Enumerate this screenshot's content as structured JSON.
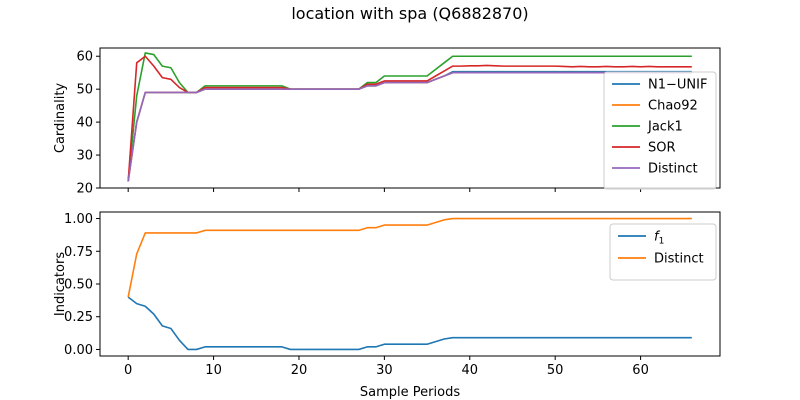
{
  "figure": {
    "title": "location with spa (Q6882870)"
  },
  "chart_data": [
    {
      "type": "line",
      "ylabel": "Cardinality",
      "xlabel": "",
      "xlim": [
        -3.3,
        69.3
      ],
      "ylim": [
        20,
        62.5
      ],
      "xticks": [
        0,
        10,
        20,
        30,
        40,
        50,
        60
      ],
      "yticks": [
        20,
        30,
        40,
        50,
        60
      ],
      "xtick_labels_visible": false,
      "grid": false,
      "legend_position": "right",
      "x": [
        0,
        1,
        2,
        3,
        4,
        5,
        6,
        7,
        8,
        9,
        10,
        11,
        12,
        13,
        14,
        15,
        16,
        17,
        18,
        19,
        20,
        21,
        22,
        23,
        24,
        25,
        26,
        27,
        28,
        29,
        30,
        31,
        32,
        33,
        34,
        35,
        36,
        37,
        38,
        39,
        40,
        41,
        42,
        43,
        44,
        45,
        46,
        47,
        48,
        49,
        50,
        51,
        52,
        53,
        54,
        55,
        56,
        57,
        58,
        59,
        60,
        61,
        62,
        63,
        64,
        65,
        66
      ],
      "series": [
        {
          "name": "N1−UNIF",
          "color": "#1f77b4",
          "values": [
            22,
            40,
            49,
            49,
            49,
            49,
            49,
            49,
            49,
            50,
            50,
            50,
            50,
            50,
            50,
            50,
            50,
            50,
            50,
            50,
            50,
            50,
            50,
            50,
            50,
            50,
            50,
            50,
            51,
            51,
            52,
            52,
            52,
            52,
            52,
            52,
            53,
            54,
            55.3,
            55.3,
            55.3,
            55.3,
            55.3,
            55.3,
            55.3,
            55.3,
            55.3,
            55.3,
            55.3,
            55.3,
            55.3,
            55.3,
            55.3,
            55.3,
            55.3,
            55.3,
            55.3,
            55.3,
            55.3,
            55.3,
            55.3,
            55.3,
            55.3,
            55.3,
            55.3,
            55.3,
            55.3
          ]
        },
        {
          "name": "Chao92",
          "color": "#ff7f0e",
          "values": [
            22,
            40,
            49,
            49,
            49,
            49,
            49,
            49,
            49,
            50,
            50,
            50,
            50,
            50,
            50,
            50,
            50,
            50,
            50,
            50,
            50,
            50,
            50,
            50,
            50,
            50,
            50,
            50,
            51,
            51,
            52,
            52,
            52,
            52,
            52,
            52,
            53,
            54,
            55,
            55,
            55,
            55,
            55,
            55,
            55,
            55,
            55,
            55,
            55,
            55,
            55,
            55,
            55,
            55,
            55,
            55,
            55,
            55,
            55,
            55,
            55,
            55,
            55,
            55,
            55,
            55,
            55
          ]
        },
        {
          "name": "Jack1",
          "color": "#2ca02c",
          "values": [
            22,
            48,
            61,
            60.5,
            57,
            56.5,
            52,
            49,
            49,
            51,
            51,
            51,
            51,
            51,
            51,
            51,
            51,
            51,
            51,
            50,
            50,
            50,
            50,
            50,
            50,
            50,
            50,
            50,
            52,
            52,
            54,
            54,
            54,
            54,
            54,
            54,
            56,
            58,
            60,
            60,
            60,
            60,
            60,
            60,
            60,
            60,
            60,
            60,
            60,
            60,
            60,
            60,
            60,
            60,
            60,
            60,
            60,
            60,
            60,
            60,
            60,
            60,
            60,
            60,
            60,
            60,
            60
          ]
        },
        {
          "name": "SOR",
          "color": "#d62728",
          "values": [
            22,
            58,
            60,
            57,
            53.5,
            53,
            50.5,
            49,
            49,
            50.5,
            50.5,
            50.5,
            50.5,
            50.5,
            50.5,
            50.5,
            50.5,
            50.5,
            50.5,
            50,
            50,
            50,
            50,
            50,
            50,
            50,
            50,
            50,
            51.5,
            51.5,
            52.5,
            52.5,
            52.5,
            52.5,
            52.5,
            52.5,
            54,
            55.5,
            57,
            57,
            57.1,
            57.1,
            57.2,
            57.1,
            57,
            57,
            57,
            57,
            57,
            57,
            57,
            56.9,
            56.8,
            56.9,
            56.8,
            56.8,
            56.9,
            56.8,
            56.8,
            56.9,
            56.8,
            56.9,
            56.8,
            56.8,
            56.8,
            56.8,
            56.8
          ]
        },
        {
          "name": "Distinct",
          "color": "#9467bd",
          "values": [
            22,
            40,
            49,
            49,
            49,
            49,
            49,
            49,
            49,
            50,
            50,
            50,
            50,
            50,
            50,
            50,
            50,
            50,
            50,
            50,
            50,
            50,
            50,
            50,
            50,
            50,
            50,
            50,
            51,
            51,
            52,
            52,
            52,
            52,
            52,
            52,
            53,
            54,
            55,
            55,
            55,
            55,
            55,
            55,
            55,
            55,
            55,
            55,
            55,
            55,
            55,
            55,
            55,
            55,
            55,
            55,
            55,
            55,
            55,
            55,
            55,
            55,
            55,
            55,
            55,
            55,
            55
          ]
        }
      ]
    },
    {
      "type": "line",
      "ylabel": "Indicators",
      "xlabel": "Sample Periods",
      "xlim": [
        -3.3,
        69.3
      ],
      "ylim": [
        -0.05,
        1.05
      ],
      "xticks": [
        0,
        10,
        20,
        30,
        40,
        50,
        60
      ],
      "yticks": [
        0.0,
        0.25,
        0.5,
        0.75,
        1.0
      ],
      "ytick_labels": [
        "0.00",
        "0.25",
        "0.50",
        "0.75",
        "1.00"
      ],
      "grid": false,
      "legend_position": "top-right",
      "x": [
        0,
        1,
        2,
        3,
        4,
        5,
        6,
        7,
        8,
        9,
        10,
        11,
        12,
        13,
        14,
        15,
        16,
        17,
        18,
        19,
        20,
        21,
        22,
        23,
        24,
        25,
        26,
        27,
        28,
        29,
        30,
        31,
        32,
        33,
        34,
        35,
        36,
        37,
        38,
        39,
        40,
        41,
        42,
        43,
        44,
        45,
        46,
        47,
        48,
        49,
        50,
        51,
        52,
        53,
        54,
        55,
        56,
        57,
        58,
        59,
        60,
        61,
        62,
        63,
        64,
        65,
        66
      ],
      "series": [
        {
          "name": "f",
          "name_subscript": "1",
          "color": "#1f77b4",
          "values": [
            0.4,
            0.35,
            0.33,
            0.27,
            0.18,
            0.16,
            0.07,
            0.0,
            0.0,
            0.02,
            0.02,
            0.02,
            0.02,
            0.02,
            0.02,
            0.02,
            0.02,
            0.02,
            0.02,
            0.0,
            0.0,
            0.0,
            0.0,
            0.0,
            0.0,
            0.0,
            0.0,
            0.0,
            0.02,
            0.02,
            0.04,
            0.04,
            0.04,
            0.04,
            0.04,
            0.04,
            0.06,
            0.08,
            0.09,
            0.09,
            0.09,
            0.09,
            0.09,
            0.09,
            0.09,
            0.09,
            0.09,
            0.09,
            0.09,
            0.09,
            0.09,
            0.09,
            0.09,
            0.09,
            0.09,
            0.09,
            0.09,
            0.09,
            0.09,
            0.09,
            0.09,
            0.09,
            0.09,
            0.09,
            0.09,
            0.09,
            0.09
          ]
        },
        {
          "name": "Distinct",
          "color": "#ff7f0e",
          "values": [
            0.4,
            0.73,
            0.89,
            0.89,
            0.89,
            0.89,
            0.89,
            0.89,
            0.89,
            0.91,
            0.91,
            0.91,
            0.91,
            0.91,
            0.91,
            0.91,
            0.91,
            0.91,
            0.91,
            0.91,
            0.91,
            0.91,
            0.91,
            0.91,
            0.91,
            0.91,
            0.91,
            0.91,
            0.93,
            0.93,
            0.95,
            0.95,
            0.95,
            0.95,
            0.95,
            0.95,
            0.97,
            0.99,
            1.0,
            1.0,
            1.0,
            1.0,
            1.0,
            1.0,
            1.0,
            1.0,
            1.0,
            1.0,
            1.0,
            1.0,
            1.0,
            1.0,
            1.0,
            1.0,
            1.0,
            1.0,
            1.0,
            1.0,
            1.0,
            1.0,
            1.0,
            1.0,
            1.0,
            1.0,
            1.0,
            1.0,
            1.0
          ]
        }
      ]
    }
  ]
}
